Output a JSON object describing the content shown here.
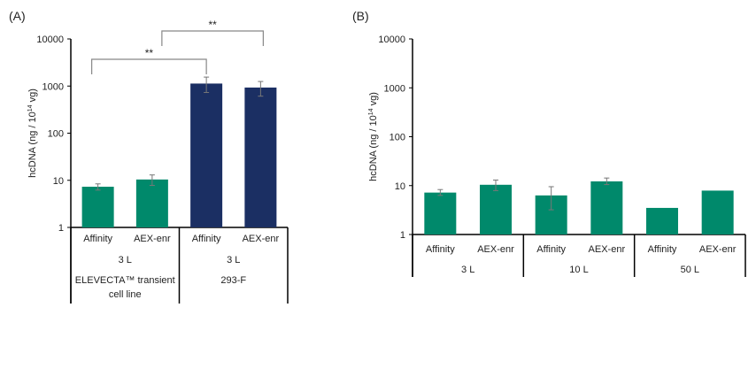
{
  "colors": {
    "teal": "#00896b",
    "navy": "#1b2f63",
    "error_bar": "#777777",
    "bracket": "#888888",
    "axis": "#000000"
  },
  "chart_data": [
    {
      "panel_label": "(A)",
      "type": "bar",
      "ylabel": "hcDNA (ng / 10",
      "ylabel_sup": "14",
      "ylabel_end": " vg)",
      "y_scale": "log",
      "ylim": [
        1,
        10000
      ],
      "y_ticks": [
        "1",
        "10",
        "100",
        "1000",
        "10000"
      ],
      "grid": false,
      "categories": [
        "Affinity",
        "AEX-enr",
        "Affinity",
        "AEX-enr"
      ],
      "values": [
        7.3,
        10.4,
        1130,
        930
      ],
      "error_low": [
        6.2,
        7.8,
        730,
        610
      ],
      "error_high": [
        8.4,
        13,
        1550,
        1250
      ],
      "bar_colors": [
        "teal",
        "teal",
        "navy",
        "navy"
      ],
      "groups_level1": [
        {
          "label": "3 L",
          "span": 2
        },
        {
          "label": "3 L",
          "span": 2
        }
      ],
      "groups_level2": [
        {
          "label": "ELEVECTA™ transient",
          "label2": "cell line",
          "span": 2
        },
        {
          "label": "293-F",
          "label2": "",
          "span": 2
        }
      ],
      "significance": [
        {
          "from": 0,
          "to": 2,
          "label": "**"
        },
        {
          "from": 1,
          "to": 3,
          "label": "**"
        }
      ]
    },
    {
      "panel_label": "(B)",
      "type": "bar",
      "ylabel": "hcDNA (ng / 10",
      "ylabel_sup": "14",
      "ylabel_end": " vg)",
      "y_scale": "log",
      "ylim": [
        1,
        10000
      ],
      "y_ticks": [
        "1",
        "10",
        "100",
        "1000",
        "10000"
      ],
      "grid": false,
      "categories": [
        "Affinity",
        "AEX-enr",
        "Affinity",
        "AEX-enr",
        "Affinity",
        "AEX-enr"
      ],
      "values": [
        7.2,
        10.4,
        6.3,
        12.2,
        3.5,
        7.9
      ],
      "error_low": [
        6.3,
        7.9,
        3.2,
        10.5,
        null,
        null
      ],
      "error_high": [
        8.3,
        13,
        9.5,
        14.3,
        null,
        null
      ],
      "bar_colors": [
        "teal",
        "teal",
        "teal",
        "teal",
        "teal",
        "teal"
      ],
      "groups_level1": [
        {
          "label": "3 L",
          "span": 2
        },
        {
          "label": "10 L",
          "span": 2
        },
        {
          "label": "50 L",
          "span": 2
        }
      ],
      "groups_level2": [],
      "significance": []
    }
  ]
}
